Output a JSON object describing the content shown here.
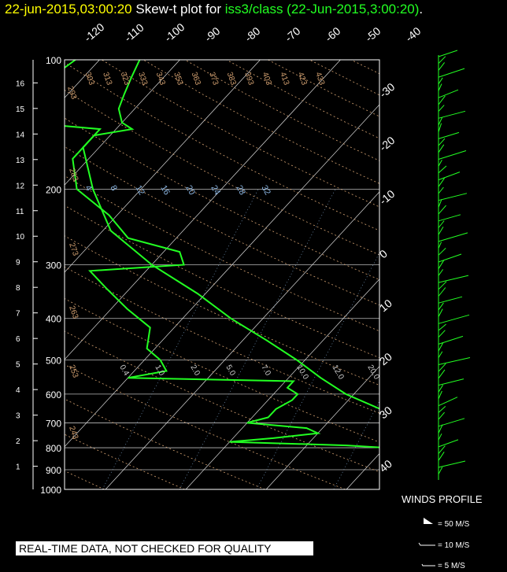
{
  "title": {
    "datetime": "22-jun-2015,03:00:20",
    "label": "Skew-t plot for",
    "source": "iss3/class (22-Jun-2015,3:00:20)",
    "period": "."
  },
  "banner": "REAL-TIME DATA, NOT CHECKED FOR QUALITY",
  "winds": {
    "title": "WINDS PROFILE",
    "legend": [
      "= 50 M/S",
      "= 10 M/S",
      "= 5 M/S"
    ]
  },
  "colors": {
    "profile": "#22ff22",
    "grid": "#ffffff",
    "dryAdiabat": "#d2a070",
    "mixing": "#8ab4e0",
    "title_datetime": "#ffff00"
  },
  "chart_data": {
    "type": "line",
    "title": "Skew-t plot for iss3/class (22-Jun-2015,3:00:20)",
    "pressure_ticks": [
      100,
      200,
      300,
      400,
      500,
      600,
      700,
      800,
      900,
      1000
    ],
    "height_km_ticks": [
      1,
      2,
      3,
      4,
      5,
      6,
      7,
      8,
      9,
      10,
      11,
      12,
      13,
      14,
      15,
      16
    ],
    "temp_ticks_top": [
      -120,
      -110,
      -100,
      -90,
      -80,
      -70,
      -60,
      -50,
      -40
    ],
    "temp_ticks_right": [
      -30,
      -20,
      -10,
      0,
      10,
      20,
      30,
      40
    ],
    "dry_adiabat_labels": [
      243,
      253,
      263,
      273,
      283,
      293,
      303,
      313,
      323,
      333,
      343,
      353,
      363,
      373,
      383,
      393,
      403,
      413,
      423,
      433
    ],
    "mixing_ratio_labels": [
      4,
      8,
      12,
      16,
      20,
      24,
      28,
      32
    ],
    "moist_labels": [
      0.4,
      1.0,
      2.0,
      5.0,
      7.0,
      10.0,
      12.0,
      20.0
    ],
    "ylim_pressure": [
      1000,
      100
    ],
    "series": [
      {
        "name": "temperature",
        "points": [
          [
            900,
            20.5
          ],
          [
            880,
            22
          ],
          [
            850,
            22
          ],
          [
            800,
            19
          ],
          [
            750,
            15
          ],
          [
            700,
            11
          ],
          [
            650,
            5
          ],
          [
            600,
            -1
          ],
          [
            550,
            -6
          ],
          [
            500,
            -11
          ],
          [
            450,
            -17
          ],
          [
            400,
            -24
          ],
          [
            350,
            -31
          ],
          [
            300,
            -40
          ],
          [
            250,
            -49
          ],
          [
            200,
            -56
          ],
          [
            160,
            -62
          ],
          [
            150,
            -62
          ],
          [
            145,
            -58
          ],
          [
            140,
            -60
          ],
          [
            130,
            -62
          ],
          [
            120,
            -63
          ],
          [
            110,
            -64
          ],
          [
            100,
            -65
          ]
        ]
      },
      {
        "name": "dewpoint",
        "points": [
          [
            900,
            15
          ],
          [
            880,
            15
          ],
          [
            850,
            13
          ],
          [
            820,
            11
          ],
          [
            800,
            10
          ],
          [
            790,
            5
          ],
          [
            775,
            -10
          ],
          [
            760,
            -5
          ],
          [
            740,
            0
          ],
          [
            720,
            -2
          ],
          [
            700,
            -10
          ],
          [
            680,
            -8
          ],
          [
            650,
            -8
          ],
          [
            620,
            -7
          ],
          [
            600,
            -7
          ],
          [
            580,
            -9
          ],
          [
            560,
            -9
          ],
          [
            550,
            -30
          ],
          [
            530,
            -26
          ],
          [
            500,
            -28
          ],
          [
            470,
            -31
          ],
          [
            420,
            -33
          ],
          [
            380,
            -38
          ],
          [
            340,
            -43
          ],
          [
            310,
            -47
          ],
          [
            300,
            -36
          ],
          [
            280,
            -38
          ],
          [
            260,
            -46
          ],
          [
            230,
            -51
          ],
          [
            200,
            -58
          ],
          [
            170,
            -62
          ],
          [
            145,
            -62
          ],
          [
            140,
            -72
          ],
          [
            130,
            -74
          ],
          [
            120,
            -73
          ],
          [
            110,
            -74
          ],
          [
            100,
            -73
          ]
        ]
      }
    ],
    "wind_barbs_pressure": [
      100,
      200,
      300,
      400,
      500,
      600,
      700,
      800,
      900
    ]
  }
}
